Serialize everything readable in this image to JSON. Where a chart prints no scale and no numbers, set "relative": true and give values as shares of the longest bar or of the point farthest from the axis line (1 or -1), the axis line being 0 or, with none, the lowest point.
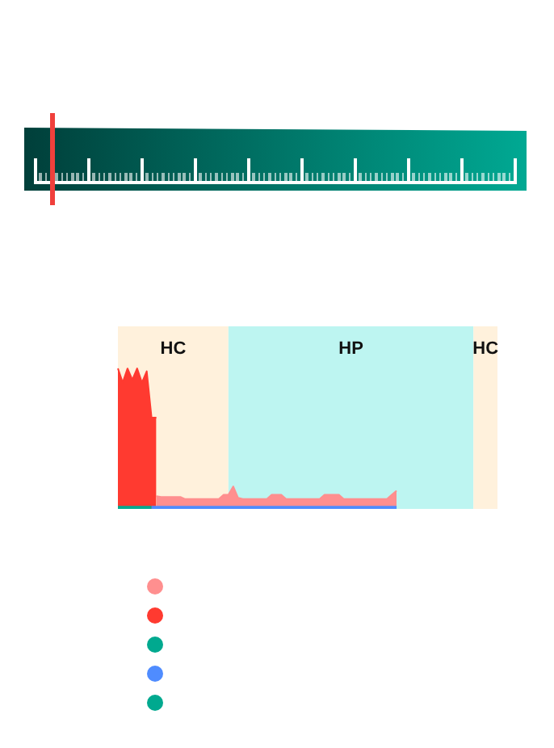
{
  "chart_data": {
    "type": "area",
    "relative": true,
    "annotations": [
      "HC",
      "HP",
      "HC"
    ],
    "categories": [
      null,
      null,
      null,
      null,
      null,
      null,
      null,
      null,
      null,
      null,
      null,
      null,
      null,
      null,
      null,
      null,
      null,
      null,
      null,
      null,
      null,
      null,
      null,
      null,
      null,
      null,
      null,
      null,
      null,
      null,
      null,
      null,
      null,
      null,
      null,
      null,
      null,
      null,
      null,
      null,
      null,
      null,
      null,
      null,
      null,
      null,
      null,
      null,
      null,
      null,
      null,
      null,
      null,
      null,
      null,
      null,
      null,
      null,
      null,
      null,
      null,
      null,
      null,
      null,
      null,
      null,
      null,
      null,
      null,
      null,
      null,
      null,
      null,
      null,
      null,
      null,
      null,
      null,
      null,
      null
    ],
    "series": [
      {
        "color": "#ff8f8f",
        "values": [
          null,
          null,
          null,
          null,
          null,
          null,
          null,
          null,
          0.09,
          0.085,
          0.085,
          0.085,
          0.085,
          0.085,
          0.07,
          0.07,
          0.07,
          0.07,
          0.07,
          0.07,
          0.07,
          0.07,
          0.1,
          0.1,
          0.16,
          0.08,
          0.07,
          0.07,
          0.07,
          0.07,
          0.07,
          0.07,
          0.1,
          0.1,
          0.1,
          0.07,
          0.07,
          0.07,
          0.07,
          0.07,
          0.07,
          0.07,
          0.07,
          0.1,
          0.1,
          0.1,
          0.1,
          0.07,
          0.07,
          0.07,
          0.07,
          0.07,
          0.07,
          0.07,
          0.07,
          0.07,
          0.07,
          0.1,
          0.13,
          null,
          null,
          null,
          null,
          null,
          null,
          null,
          null,
          null,
          null,
          null,
          null,
          null,
          null,
          null,
          null,
          null,
          null,
          null,
          null,
          null
        ]
      },
      {
        "color": "#ff3a30",
        "values": [
          1,
          0.9,
          1,
          0.92,
          1,
          0.9,
          0.98,
          0.65,
          0.65,
          null,
          null,
          null,
          null,
          null,
          null,
          null,
          null,
          null,
          null,
          null,
          null,
          null,
          null,
          null,
          null,
          null,
          null,
          null,
          null,
          null,
          null,
          null,
          null,
          null,
          null,
          null,
          null,
          null,
          null,
          null,
          null,
          null,
          null,
          null,
          null,
          null,
          null,
          null,
          null,
          null,
          null,
          null,
          null,
          null,
          null,
          null,
          null,
          null,
          null,
          null,
          null,
          null,
          null,
          null,
          null,
          null,
          null,
          null,
          null,
          null,
          null,
          null,
          null,
          null,
          null,
          null,
          null,
          null,
          null,
          null
        ]
      },
      {
        "type": "line",
        "color": "#00a98f",
        "values": [
          0.01,
          0.01,
          0.01,
          0.01,
          0.01,
          0.01,
          0.01,
          0.01,
          null,
          null,
          null,
          null,
          null,
          null,
          null,
          null,
          null,
          null,
          null,
          null,
          null,
          null,
          null,
          null,
          null,
          null,
          null,
          null,
          null,
          null,
          null,
          null,
          null,
          null,
          null,
          null,
          null,
          null,
          null,
          null,
          null,
          null,
          null,
          null,
          null,
          null,
          null,
          null,
          null,
          null,
          null,
          null,
          null,
          null,
          null,
          null,
          null,
          null,
          null,
          null,
          null,
          null,
          null,
          null,
          null,
          null,
          null,
          null,
          null,
          null,
          null,
          null,
          null,
          null,
          null,
          null,
          null,
          null,
          null,
          null
        ]
      },
      {
        "type": "line",
        "color": "#4f8cff",
        "values": [
          null,
          null,
          null,
          null,
          null,
          null,
          null,
          0.01,
          0.01,
          0.01,
          0.01,
          0.01,
          0.01,
          0.01,
          0.01,
          0.01,
          0.01,
          0.01,
          0.01,
          0.01,
          0.01,
          0.01,
          0.01,
          0.01,
          0.01,
          0.01,
          0.01,
          0.01,
          0.01,
          0.01,
          0.01,
          0.01,
          0.01,
          0.01,
          0.01,
          0.01,
          0.01,
          0.01,
          0.01,
          0.01,
          0.01,
          0.01,
          0.01,
          0.01,
          0.01,
          0.01,
          0.01,
          0.01,
          0.01,
          0.01,
          0.01,
          0.01,
          0.01,
          0.01,
          0.01,
          0.01,
          0.01,
          0.01,
          0.01,
          null,
          null,
          null,
          null,
          null,
          null,
          null,
          null,
          null,
          null,
          null,
          null,
          null,
          null,
          null,
          null,
          null,
          null,
          null,
          null,
          null
        ]
      },
      {
        "type": "line",
        "color": "#00a98f",
        "values": [
          null,
          null,
          null,
          null,
          null,
          null,
          null,
          null,
          null,
          null,
          null,
          null,
          null,
          null,
          null,
          null,
          null,
          null,
          null,
          null,
          null,
          null,
          null,
          null,
          null,
          null,
          null,
          null,
          null,
          null,
          null,
          null,
          null,
          null,
          null,
          null,
          null,
          null,
          null,
          null,
          null,
          null,
          null,
          null,
          null,
          null,
          null,
          null,
          null,
          null,
          null,
          null,
          null,
          null,
          null,
          null,
          null,
          null,
          null,
          null,
          null,
          null,
          null,
          null,
          null,
          null,
          null,
          null,
          null,
          null,
          null,
          null,
          null,
          null,
          null,
          null,
          null,
          null,
          null,
          null
        ]
      }
    ]
  }
}
